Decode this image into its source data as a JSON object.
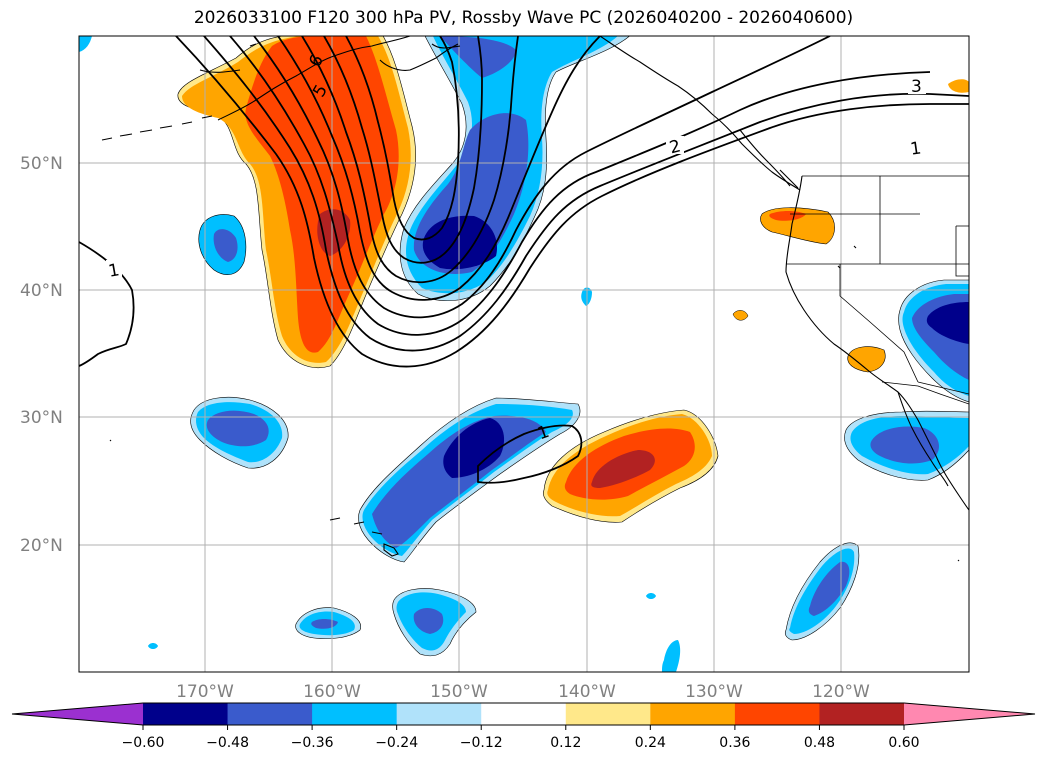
{
  "title": "2026033100 F120 300 hPa PV, Rossby Wave PC (2026040200 - 2026040600)",
  "map": {
    "lon_labels": [
      "170°W",
      "160°W",
      "150°W",
      "140°W",
      "130°W",
      "120°W"
    ],
    "lat_labels": [
      "50°N",
      "40°N",
      "30°N",
      "20°N"
    ],
    "contour_labels": [
      "6",
      "5",
      "3",
      "2",
      "1",
      "1",
      "1"
    ]
  },
  "colorbar": {
    "ticks": [
      "−0.60",
      "−0.48",
      "−0.36",
      "−0.24",
      "−0.12",
      "0.12",
      "0.24",
      "0.36",
      "0.48",
      "0.60"
    ],
    "colors": [
      "#9b30d0",
      "#00008b",
      "#3a5bcc",
      "#00bfff",
      "#b0e2fa",
      "#ffffff",
      "#ffe88a",
      "#ffa500",
      "#ff4500",
      "#b22222",
      "#ff88b0"
    ]
  },
  "colors": {
    "navy": "#00008b",
    "royal": "#3a5bcc",
    "sky": "#00bfff",
    "pale_blue": "#b0e2fa",
    "pale_yellow": "#ffe88a",
    "orange": "#ffa500",
    "red_orange": "#ff4500",
    "firebrick": "#b22222",
    "grid": "#b0b0b0"
  }
}
